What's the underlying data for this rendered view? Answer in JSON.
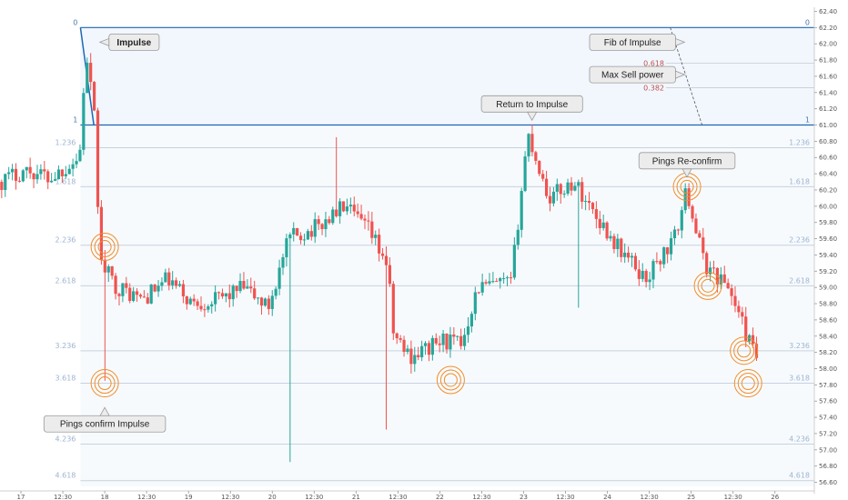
{
  "chart_data": {
    "type": "candlestick",
    "price_range": [
      56.55,
      62.45
    ],
    "y_ticks": [
      "62.40",
      "62.20",
      "62.00",
      "61.80",
      "61.60",
      "61.40",
      "61.20",
      "61.00",
      "60.80",
      "60.60",
      "60.40",
      "60.20",
      "60.00",
      "59.80",
      "59.60",
      "59.40",
      "59.20",
      "59.00",
      "58.80",
      "58.60",
      "58.40",
      "58.20",
      "58.00",
      "57.80",
      "57.60",
      "57.40",
      "57.20",
      "57.00",
      "56.80",
      "56.60"
    ],
    "x_ticks": [
      {
        "label": "17",
        "x": 0.25
      },
      {
        "label": "12:30",
        "x": 0.75
      },
      {
        "label": "18",
        "x": 1.25
      },
      {
        "label": "12:30",
        "x": 1.75
      },
      {
        "label": "19",
        "x": 2.25
      },
      {
        "label": "12:30",
        "x": 2.75
      },
      {
        "label": "20",
        "x": 3.25
      },
      {
        "label": "12:30",
        "x": 3.75
      },
      {
        "label": "21",
        "x": 4.25
      },
      {
        "label": "12:30",
        "x": 4.75
      },
      {
        "label": "22",
        "x": 5.25
      },
      {
        "label": "12:30",
        "x": 5.75
      },
      {
        "label": "23",
        "x": 6.25
      },
      {
        "label": "12:30",
        "x": 6.75
      },
      {
        "label": "24",
        "x": 7.25
      },
      {
        "label": "12:30",
        "x": 7.75
      },
      {
        "label": "25",
        "x": 8.25
      },
      {
        "label": "12:30",
        "x": 8.75
      },
      {
        "label": "26",
        "x": 9.25
      }
    ],
    "x_range": [
      0,
      9.72
    ],
    "fib_levels": [
      {
        "label": "0",
        "price": 62.2
      },
      {
        "label": "1",
        "price": 61.0
      },
      {
        "label": "1.236",
        "price": 60.72
      },
      {
        "label": "1.618",
        "price": 60.24
      },
      {
        "label": "2.236",
        "price": 59.52
      },
      {
        "label": "2.618",
        "price": 59.02
      },
      {
        "label": "3.236",
        "price": 58.22
      },
      {
        "label": "3.618",
        "price": 57.82
      },
      {
        "label": "4.236",
        "price": 57.07
      },
      {
        "label": "4.618",
        "price": 56.62
      }
    ],
    "fib_x_start": 0.96,
    "inner_fib": [
      {
        "label": "0.618",
        "price": 61.76
      },
      {
        "label": "0.382",
        "price": 61.46
      }
    ],
    "anchors": [
      {
        "x": 0,
        "price": 60.3
      },
      {
        "x": 0.3,
        "price": 60.45
      },
      {
        "x": 0.6,
        "price": 60.35
      },
      {
        "x": 0.95,
        "price": 60.6
      },
      {
        "x": 1.02,
        "price": 61.85
      },
      {
        "x": 1.12,
        "price": 61.2
      },
      {
        "x": 1.2,
        "price": 59.3
      },
      {
        "x": 1.4,
        "price": 59.0
      },
      {
        "x": 1.7,
        "price": 58.85
      },
      {
        "x": 2.0,
        "price": 59.1
      },
      {
        "x": 2.3,
        "price": 58.8
      },
      {
        "x": 2.6,
        "price": 58.85
      },
      {
        "x": 2.9,
        "price": 59.0
      },
      {
        "x": 3.2,
        "price": 58.75
      },
      {
        "x": 3.45,
        "price": 59.6
      },
      {
        "x": 3.8,
        "price": 59.75
      },
      {
        "x": 4.1,
        "price": 60.0
      },
      {
        "x": 4.4,
        "price": 59.7
      },
      {
        "x": 4.62,
        "price": 59.3
      },
      {
        "x": 4.7,
        "price": 58.4
      },
      {
        "x": 4.9,
        "price": 58.15
      },
      {
        "x": 5.3,
        "price": 58.35
      },
      {
        "x": 5.5,
        "price": 58.3
      },
      {
        "x": 5.7,
        "price": 59.0
      },
      {
        "x": 6.1,
        "price": 59.05
      },
      {
        "x": 6.3,
        "price": 60.9
      },
      {
        "x": 6.55,
        "price": 60.1
      },
      {
        "x": 6.85,
        "price": 60.3
      },
      {
        "x": 7.3,
        "price": 59.6
      },
      {
        "x": 7.7,
        "price": 59.1
      },
      {
        "x": 8.05,
        "price": 59.6
      },
      {
        "x": 8.2,
        "price": 60.2
      },
      {
        "x": 8.4,
        "price": 59.3
      },
      {
        "x": 8.7,
        "price": 59.0
      },
      {
        "x": 8.95,
        "price": 58.3
      },
      {
        "x": 9.05,
        "price": 58.1
      }
    ],
    "rings": [
      {
        "x": 1.25,
        "price": 59.5
      },
      {
        "x": 1.25,
        "price": 57.82
      },
      {
        "x": 5.38,
        "price": 57.86
      },
      {
        "x": 8.2,
        "price": 60.24
      },
      {
        "x": 8.45,
        "price": 59.02
      },
      {
        "x": 8.88,
        "price": 58.22
      },
      {
        "x": 8.93,
        "price": 57.82
      }
    ],
    "annotations": [
      {
        "text": "Impulse",
        "x": 1.6,
        "price": 62.02,
        "pointer": "left"
      },
      {
        "text": "Return to Impulse",
        "x": 6.35,
        "price": 61.26,
        "pointer": "down"
      },
      {
        "text": "Pings Re-confirm",
        "x": 8.2,
        "price": 60.56,
        "pointer": "down"
      },
      {
        "text": "Pings confirm Impulse",
        "x": 1.25,
        "price": 57.32,
        "pointer": "up"
      },
      {
        "text": "Fib of Impulse",
        "x": 7.55,
        "price": 62.02,
        "pointer": "right"
      },
      {
        "text": "Max Sell power",
        "x": 7.55,
        "price": 61.62,
        "pointer": "right"
      }
    ]
  },
  "colors": {
    "up": "#26a69a",
    "down": "#ef5350",
    "fib_line": "#1e66b3",
    "fib_level_line": "#c7d2de",
    "ring": "#f28c28",
    "shade_top": "#e8f1fb"
  }
}
